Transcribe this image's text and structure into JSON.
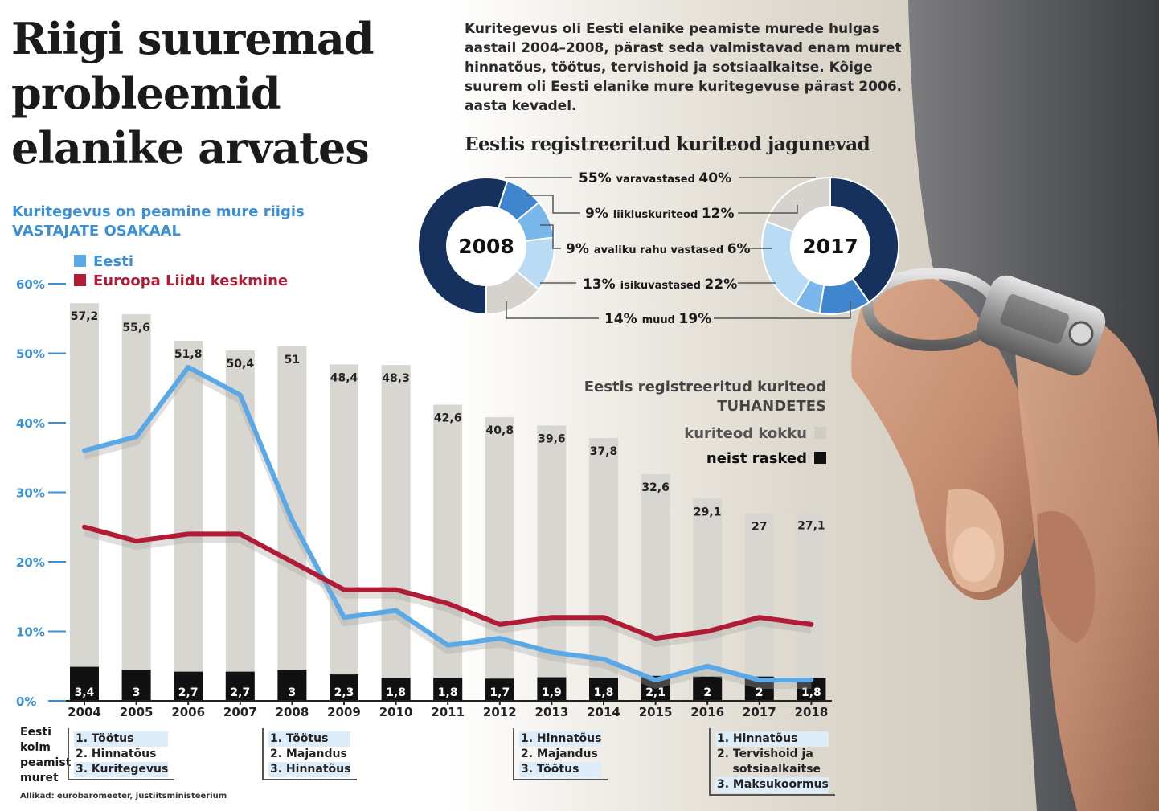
{
  "title": "Riigi suuremad probleemid elanike arvates",
  "intro": "Kuritegevus oli Eesti elanike peamiste murede hulgas aastail 2004–2008, pärast seda valmistavad enam muret hinnatõus, töötus, tervishoid ja sotsiaalkaitse. Kõige suurem oli Eesti elanike mure kuritegevuse pärast 2006. aasta kevadel.",
  "source": "Allikad: eurobaromeeter, justiitsministeerium",
  "main_chart": {
    "subtitle_line1": "Kuritegevus on peamine mure riigis",
    "subtitle_line2": "VASTAJATE OSAKAAL",
    "legend_eesti": "Eesti",
    "legend_el": "Euroopa Liidu keskmine",
    "crimes_legend_title1": "Eestis registreeritud kuriteod",
    "crimes_legend_title2": "TUHANDETES",
    "legend_total": "kuriteod kokku",
    "legend_severe": "neist rasked"
  },
  "colors": {
    "eesti": "#5aa9e6",
    "el": "#b01c36",
    "total_bar": "#d8d6d1",
    "severe_bar": "#111111",
    "subtitle_blue": "#3a8fd6",
    "navy": "#16315e",
    "donut_blue": "#3f86cf",
    "donut_mid": "#79b6ea",
    "donut_light": "#b9dbf4",
    "donut_grey": "#d6d3ce"
  },
  "chart_data": [
    {
      "type": "bar+line",
      "categories": [
        "2004",
        "2005",
        "2006",
        "2007",
        "2008",
        "2009",
        "2010",
        "2011",
        "2012",
        "2013",
        "2014",
        "2015",
        "2016",
        "2017",
        "2018"
      ],
      "ylim": [
        0,
        60
      ],
      "y_ticks": [
        "0%",
        "10%",
        "20%",
        "30%",
        "40%",
        "50%",
        "60%"
      ],
      "bars": [
        {
          "name": "kuriteod kokku",
          "unit": "tuhandetes",
          "values": [
            57.2,
            55.6,
            51.8,
            50.4,
            51,
            48.4,
            48.3,
            42.6,
            40.8,
            39.6,
            37.8,
            32.6,
            29.1,
            27,
            27.1
          ],
          "labels": [
            "57,2",
            "55,6",
            "51,8",
            "50,4",
            "51",
            "48,4",
            "48,3",
            "42,6",
            "40,8",
            "39,6",
            "37,8",
            "32,6",
            "29,1",
            "27",
            "27,1"
          ]
        },
        {
          "name": "neist rasked",
          "unit": "tuhandetes",
          "values": [
            3.4,
            3,
            2.7,
            2.7,
            3,
            2.3,
            1.8,
            1.8,
            1.7,
            1.9,
            1.8,
            2.1,
            2,
            2,
            1.8
          ],
          "labels": [
            "3,4",
            "3",
            "2,7",
            "2,7",
            "3",
            "2,3",
            "1,8",
            "1,8",
            "1,7",
            "1,9",
            "1,8",
            "2,1",
            "2",
            "2",
            "1,8"
          ]
        }
      ],
      "series": [
        {
          "name": "Eesti",
          "values": [
            36,
            38,
            48,
            44,
            26,
            12,
            13,
            8,
            9,
            7,
            6,
            3,
            5,
            3,
            3
          ]
        },
        {
          "name": "Euroopa Liidu keskmine",
          "values": [
            25,
            23,
            24,
            24,
            20,
            16,
            16,
            14,
            11,
            12,
            12,
            9,
            10,
            12,
            11
          ]
        }
      ]
    },
    {
      "type": "pie",
      "title": "Eestis registreeritud kuriteod jagunevad",
      "donut_labels": [
        "2008",
        "2017"
      ],
      "categories": [
        "varavastased",
        "liikluskuriteod",
        "avaliku rahu vastased",
        "isikuvastased",
        "muud"
      ],
      "series": [
        {
          "name": "2008",
          "values": [
            55,
            9,
            9,
            13,
            14
          ]
        },
        {
          "name": "2017",
          "values": [
            40,
            12,
            6,
            22,
            19
          ]
        }
      ],
      "row_labels": [
        {
          "left": "55%",
          "name": "varavastased",
          "right": "40%"
        },
        {
          "left": "9%",
          "name": "liikluskuriteod",
          "right": "12%"
        },
        {
          "left": "9%",
          "name": "avaliku rahu vastased",
          "right": "6%"
        },
        {
          "left": "13%",
          "name": "isikuvastased",
          "right": "22%"
        },
        {
          "left": "14%",
          "name": "muud",
          "right": "19%"
        }
      ]
    }
  ],
  "concerns": {
    "title_line1": "Eesti",
    "title_line2": "kolm",
    "title_line3": "peamist",
    "title_line4": "muret",
    "boxes": [
      {
        "items": [
          "1.  Töötus",
          "2. Hinnatõus",
          "3. Kuritegevus"
        ]
      },
      {
        "items": [
          "1.  Töötus",
          "2. Majandus",
          "3. Hinnatõus"
        ]
      },
      {
        "items": [
          "1.  Hinnatõus",
          "2. Majandus",
          "3. Töötus"
        ]
      },
      {
        "items": [
          "1.  Hinnatõus",
          "2. Tervishoid ja",
          "    sotsiaalkaitse",
          "3. Maksukoormus"
        ]
      }
    ]
  }
}
